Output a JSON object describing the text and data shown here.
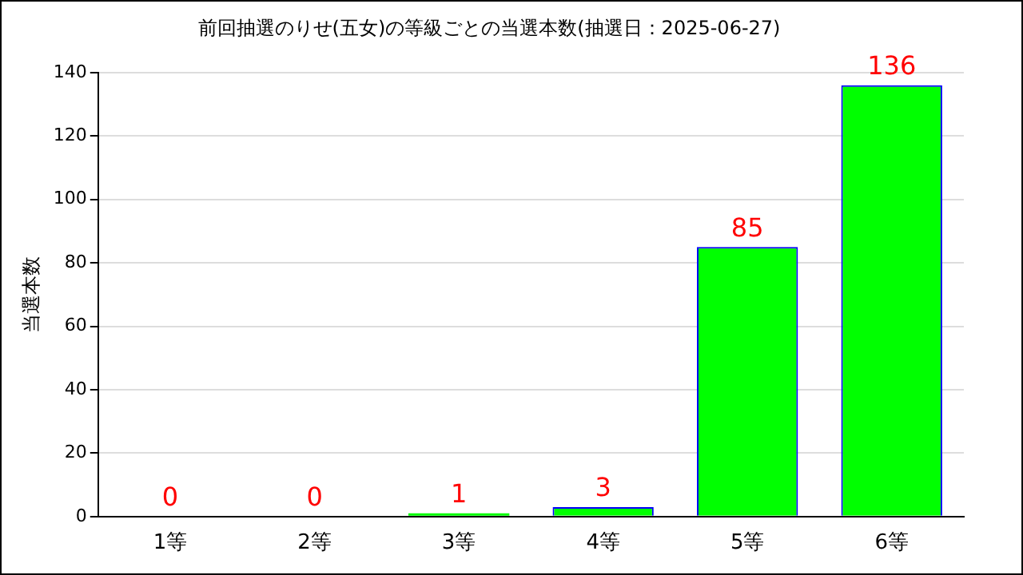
{
  "chart_data": {
    "type": "bar",
    "title": "前回抽選のりせ(五女)の等級ごとの当選本数(抽選日：2025-06-27)",
    "ylabel": "当選本数",
    "categories": [
      "1等",
      "2等",
      "3等",
      "4等",
      "5等",
      "6等"
    ],
    "values": [
      0,
      0,
      1,
      3,
      85,
      136
    ],
    "color": "#00ff00",
    "ylim": [
      0,
      140
    ],
    "yticks": [
      0,
      20,
      40,
      60,
      80,
      100,
      120,
      140
    ],
    "grid": "y",
    "legend": false,
    "data_labels": true
  }
}
